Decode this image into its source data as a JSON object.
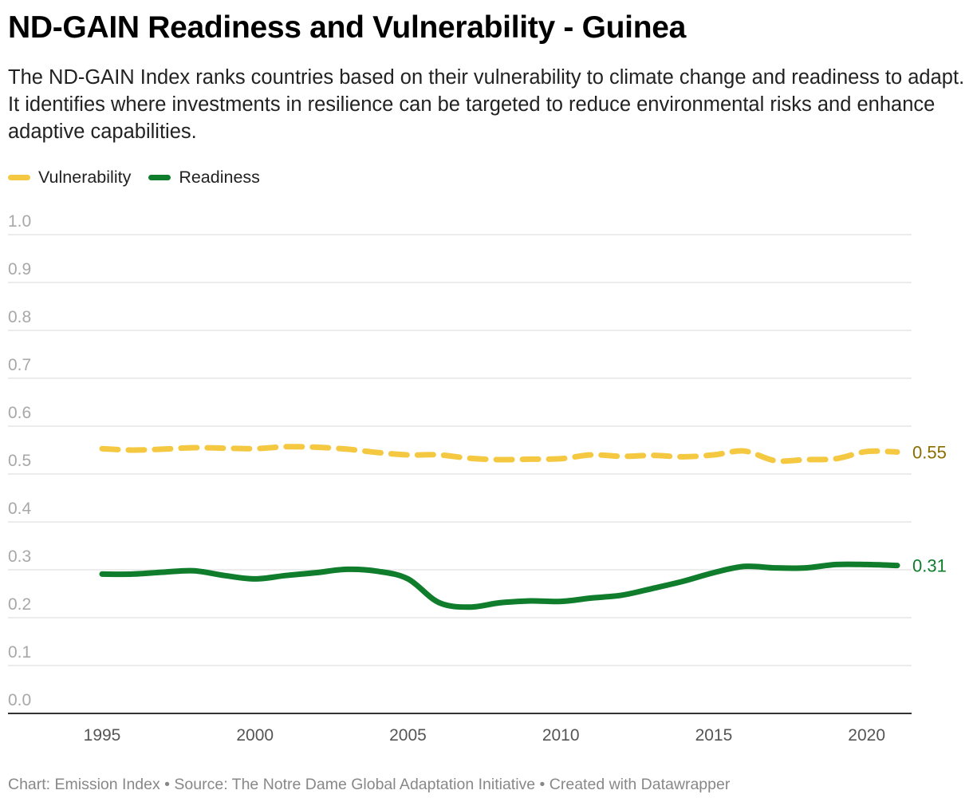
{
  "header": {
    "title": "ND-GAIN Readiness and Vulnerability - Guinea",
    "subtitle": "The ND-GAIN Index ranks countries based on their vulnerability to climate change and readiness to adapt. It identifies where investments in resilience can be targeted to reduce environmental risks and enhance adaptive capabilities."
  },
  "legend": [
    {
      "label": "Vulnerability",
      "color": "#f5c842"
    },
    {
      "label": "Readiness",
      "color": "#0f7d2c"
    }
  ],
  "footer": {
    "text": "Chart: Emission Index • Source: The Notre Dame Global Adaptation Initiative • Created with Datawrapper"
  },
  "chart_data": {
    "type": "line",
    "x": [
      1995,
      1996,
      1997,
      1998,
      1999,
      2000,
      2001,
      2002,
      2003,
      2004,
      2005,
      2006,
      2007,
      2008,
      2009,
      2010,
      2011,
      2012,
      2013,
      2014,
      2015,
      2016,
      2017,
      2018,
      2019,
      2020,
      2021
    ],
    "series": [
      {
        "name": "Vulnerability",
        "color": "#f5c842",
        "dashed": true,
        "end_label": "0.55",
        "end_label_color": "#8c6d00",
        "values": [
          0.553,
          0.55,
          0.552,
          0.555,
          0.554,
          0.553,
          0.557,
          0.556,
          0.552,
          0.545,
          0.54,
          0.54,
          0.533,
          0.53,
          0.531,
          0.532,
          0.54,
          0.537,
          0.539,
          0.536,
          0.54,
          0.548,
          0.528,
          0.53,
          0.532,
          0.547,
          0.546
        ]
      },
      {
        "name": "Readiness",
        "color": "#0f7d2c",
        "dashed": false,
        "end_label": "0.31",
        "end_label_color": "#0f7d2c",
        "values": [
          0.291,
          0.291,
          0.295,
          0.298,
          0.288,
          0.281,
          0.288,
          0.294,
          0.301,
          0.297,
          0.281,
          0.232,
          0.222,
          0.231,
          0.235,
          0.234,
          0.241,
          0.247,
          0.261,
          0.276,
          0.294,
          0.307,
          0.304,
          0.304,
          0.311,
          0.311,
          0.309
        ]
      }
    ],
    "xticks": [
      "1995",
      "2000",
      "2005",
      "2010",
      "2015",
      "2020"
    ],
    "yticks": [
      "0.0",
      "0.1",
      "0.2",
      "0.3",
      "0.4",
      "0.5",
      "0.6",
      "0.7",
      "0.8",
      "0.9",
      "1.0"
    ],
    "ylim": [
      0,
      1
    ],
    "grid": true
  }
}
